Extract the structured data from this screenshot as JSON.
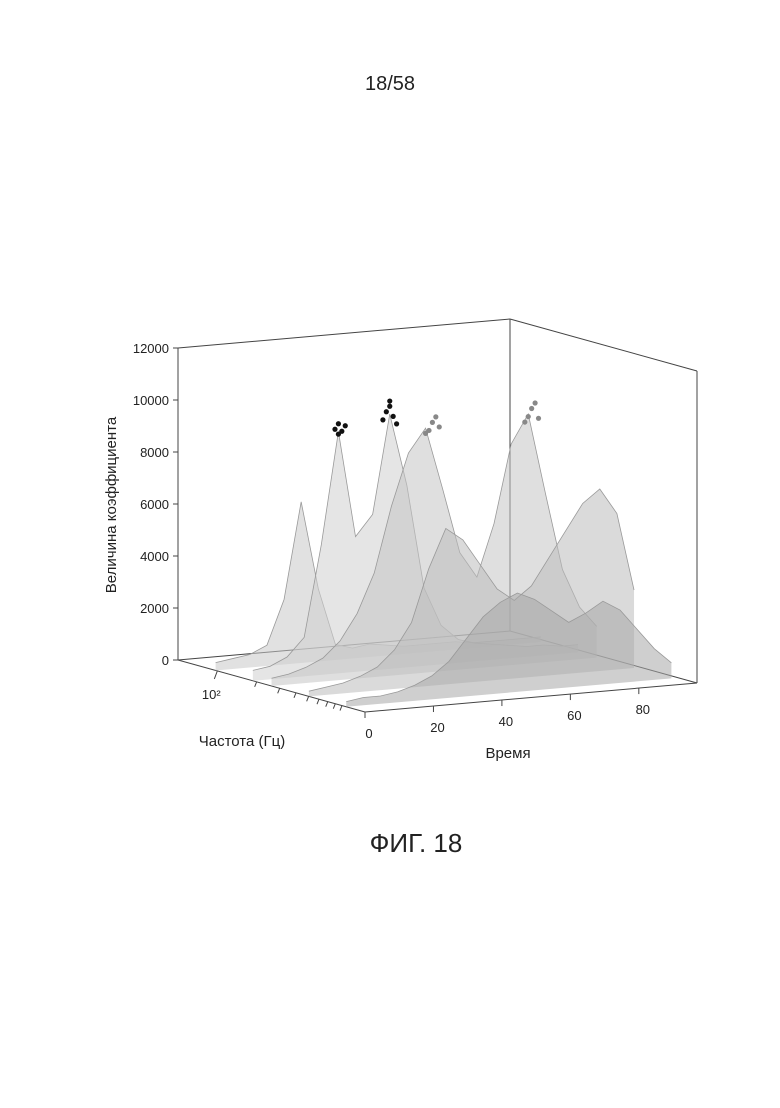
{
  "page_number": "18/58",
  "caption": "ФИГ. 18",
  "chart_data": {
    "type": "surface3d",
    "z_label": "Величина коэффициента",
    "x_label": "Время",
    "f_label": "Частота (Гц)",
    "xlim": [
      0,
      97
    ],
    "xticks": [
      0,
      20,
      40,
      60,
      80
    ],
    "flim": [
      50,
      1350
    ],
    "fscale": "log",
    "fticks": [
      {
        "value": 100,
        "label": "10²"
      }
    ],
    "fminor": [
      200,
      300,
      400,
      500,
      600,
      700,
      800,
      900
    ],
    "zlim": [
      0,
      12000
    ],
    "zticks": [
      0,
      2000,
      4000,
      6000,
      8000,
      10000,
      12000
    ],
    "x": [
      0,
      5,
      10,
      15,
      20,
      25,
      30,
      35,
      40,
      45,
      50,
      55,
      60,
      65,
      70,
      75,
      80,
      85,
      90,
      95
    ],
    "slices": [
      {
        "frequency": 97,
        "color": "#c8c8c8",
        "values": [
          300,
          400,
          500,
          800,
          2500,
          6200,
          2800,
          600,
          400,
          500,
          400,
          300,
          300,
          300,
          300,
          200,
          200,
          200,
          200,
          200
        ]
      },
      {
        "frequency": 187,
        "color": "#d0d0d0",
        "values": [
          400,
          500,
          800,
          1500,
          5000,
          9300,
          5200,
          6000,
          9800,
          7000,
          3000,
          1500,
          900,
          700,
          600,
          500,
          400,
          400,
          300,
          300
        ]
      },
      {
        "frequency": 260,
        "color": "#c4c4c4",
        "values": [
          300,
          400,
          600,
          900,
          1500,
          2500,
          4000,
          6500,
          8500,
          9400,
          7000,
          4500,
          3500,
          5500,
          8500,
          9600,
          6500,
          3500,
          2000,
          1200
        ]
      },
      {
        "frequency": 502,
        "color": "#bcbcbc",
        "values": [
          200,
          300,
          400,
          600,
          900,
          1500,
          2500,
          4500,
          6000,
          5500,
          4500,
          3500,
          3000,
          3500,
          4500,
          5500,
          6500,
          7000,
          6000,
          3000
        ]
      },
      {
        "frequency": 970,
        "color": "#a8a8a8",
        "values": [
          200,
          300,
          300,
          400,
          600,
          900,
          1400,
          2200,
          3000,
          3500,
          3800,
          3500,
          3000,
          2500,
          2800,
          3200,
          2800,
          2000,
          1200,
          600
        ]
      }
    ],
    "points": [
      {
        "color": "#111111",
        "x": [
          24,
          25,
          26,
          25,
          27,
          39,
          40,
          41,
          38,
          42,
          40
        ],
        "frequency": [
          187,
          187,
          187,
          187,
          187,
          187,
          187,
          187,
          187,
          187,
          187
        ],
        "values": [
          9400,
          9600,
          9300,
          9200,
          9500,
          9900,
          10300,
          9700,
          9600,
          9400,
          10100
        ]
      },
      {
        "color": "#888888",
        "x": [
          46,
          47,
          48,
          45,
          49,
          75,
          76,
          77,
          74,
          78
        ],
        "frequency": [
          260,
          260,
          260,
          260,
          260,
          260,
          260,
          260,
          260,
          260
        ],
        "values": [
          9300,
          9600,
          9800,
          9200,
          9400,
          9500,
          9800,
          10000,
          9300,
          9400
        ]
      }
    ]
  }
}
